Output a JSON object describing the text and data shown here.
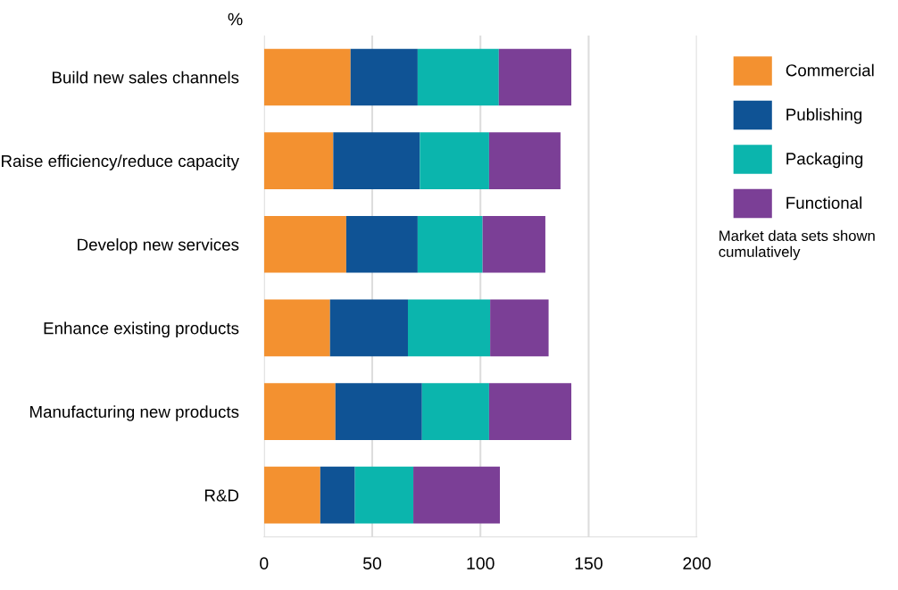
{
  "chart_data": {
    "type": "bar",
    "orientation": "horizontal",
    "stacked": true,
    "categories": [
      "Build new sales channels",
      "Raise efficiency/reduce capacity",
      "Develop new services",
      "Enhance existing products",
      "Manufacturing new products",
      "R&D"
    ],
    "series": [
      {
        "name": "Commercial",
        "color": "#f39130",
        "values": [
          40,
          32,
          38,
          30.5,
          33,
          26
        ]
      },
      {
        "name": "Publishing",
        "color": "#0f5395",
        "values": [
          31,
          40,
          33,
          36,
          40,
          16
        ]
      },
      {
        "name": "Packaging",
        "color": "#0bb5ad",
        "values": [
          37.5,
          32,
          30,
          38,
          31,
          27
        ]
      },
      {
        "name": "Functional",
        "color": "#7b3f96",
        "values": [
          33.5,
          33,
          29,
          27,
          38,
          40
        ]
      }
    ],
    "xlim": [
      0,
      200
    ],
    "xticks": [
      0,
      50,
      100,
      150,
      200
    ],
    "grid": "x",
    "legend": "top right",
    "annotations": [
      "%",
      "Market data sets shown cumulatively"
    ]
  }
}
